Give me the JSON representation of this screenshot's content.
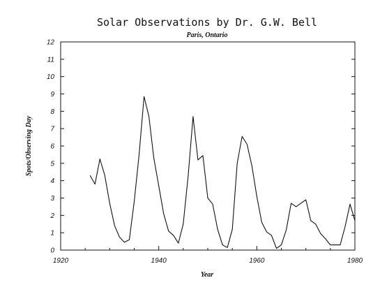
{
  "chart_data": {
    "type": "line",
    "title": "Solar Observations by Dr. G.W. Bell",
    "subtitle": "Paris, Ontario",
    "xlabel": "Year",
    "ylabel": "Spots/Observing Day",
    "xlim": [
      1920,
      1980
    ],
    "ylim": [
      0,
      12
    ],
    "x_ticks": [
      1920,
      1940,
      1960,
      1980
    ],
    "x_minor_step": 5,
    "y_ticks": [
      0,
      1,
      2,
      3,
      4,
      5,
      6,
      7,
      8,
      9,
      10,
      11,
      12
    ],
    "grid": false,
    "line_color": "#111111",
    "series": [
      {
        "x": [
          1926,
          1927,
          1928,
          1929,
          1930,
          1931,
          1932,
          1933,
          1934,
          1935,
          1936,
          1937,
          1938,
          1939,
          1940,
          1941,
          1942,
          1943,
          1944,
          1945,
          1946,
          1947,
          1948,
          1949,
          1950,
          1951,
          1952,
          1953,
          1954,
          1955,
          1956,
          1957,
          1958,
          1959,
          1960,
          1961,
          1962,
          1963,
          1964,
          1965,
          1966,
          1967,
          1968,
          1969,
          1970,
          1971,
          1972,
          1973,
          1974,
          1975,
          1976,
          1977,
          1978,
          1979,
          1980
        ],
        "values": [
          4.3,
          3.8,
          5.25,
          4.3,
          2.7,
          1.4,
          0.75,
          0.45,
          0.6,
          2.8,
          5.5,
          8.85,
          7.7,
          5.3,
          3.7,
          2.1,
          1.1,
          0.85,
          0.4,
          1.5,
          4.3,
          7.7,
          5.2,
          5.45,
          3.0,
          2.65,
          1.2,
          0.3,
          0.15,
          1.2,
          5.0,
          6.55,
          6.1,
          4.85,
          3.1,
          1.6,
          1.05,
          0.85,
          0.1,
          0.3,
          1.15,
          2.7,
          2.5,
          2.7,
          2.9,
          1.7,
          1.5,
          0.95,
          0.65,
          0.3,
          0.3,
          0.3,
          1.35,
          2.65,
          1.7
        ]
      }
    ]
  }
}
